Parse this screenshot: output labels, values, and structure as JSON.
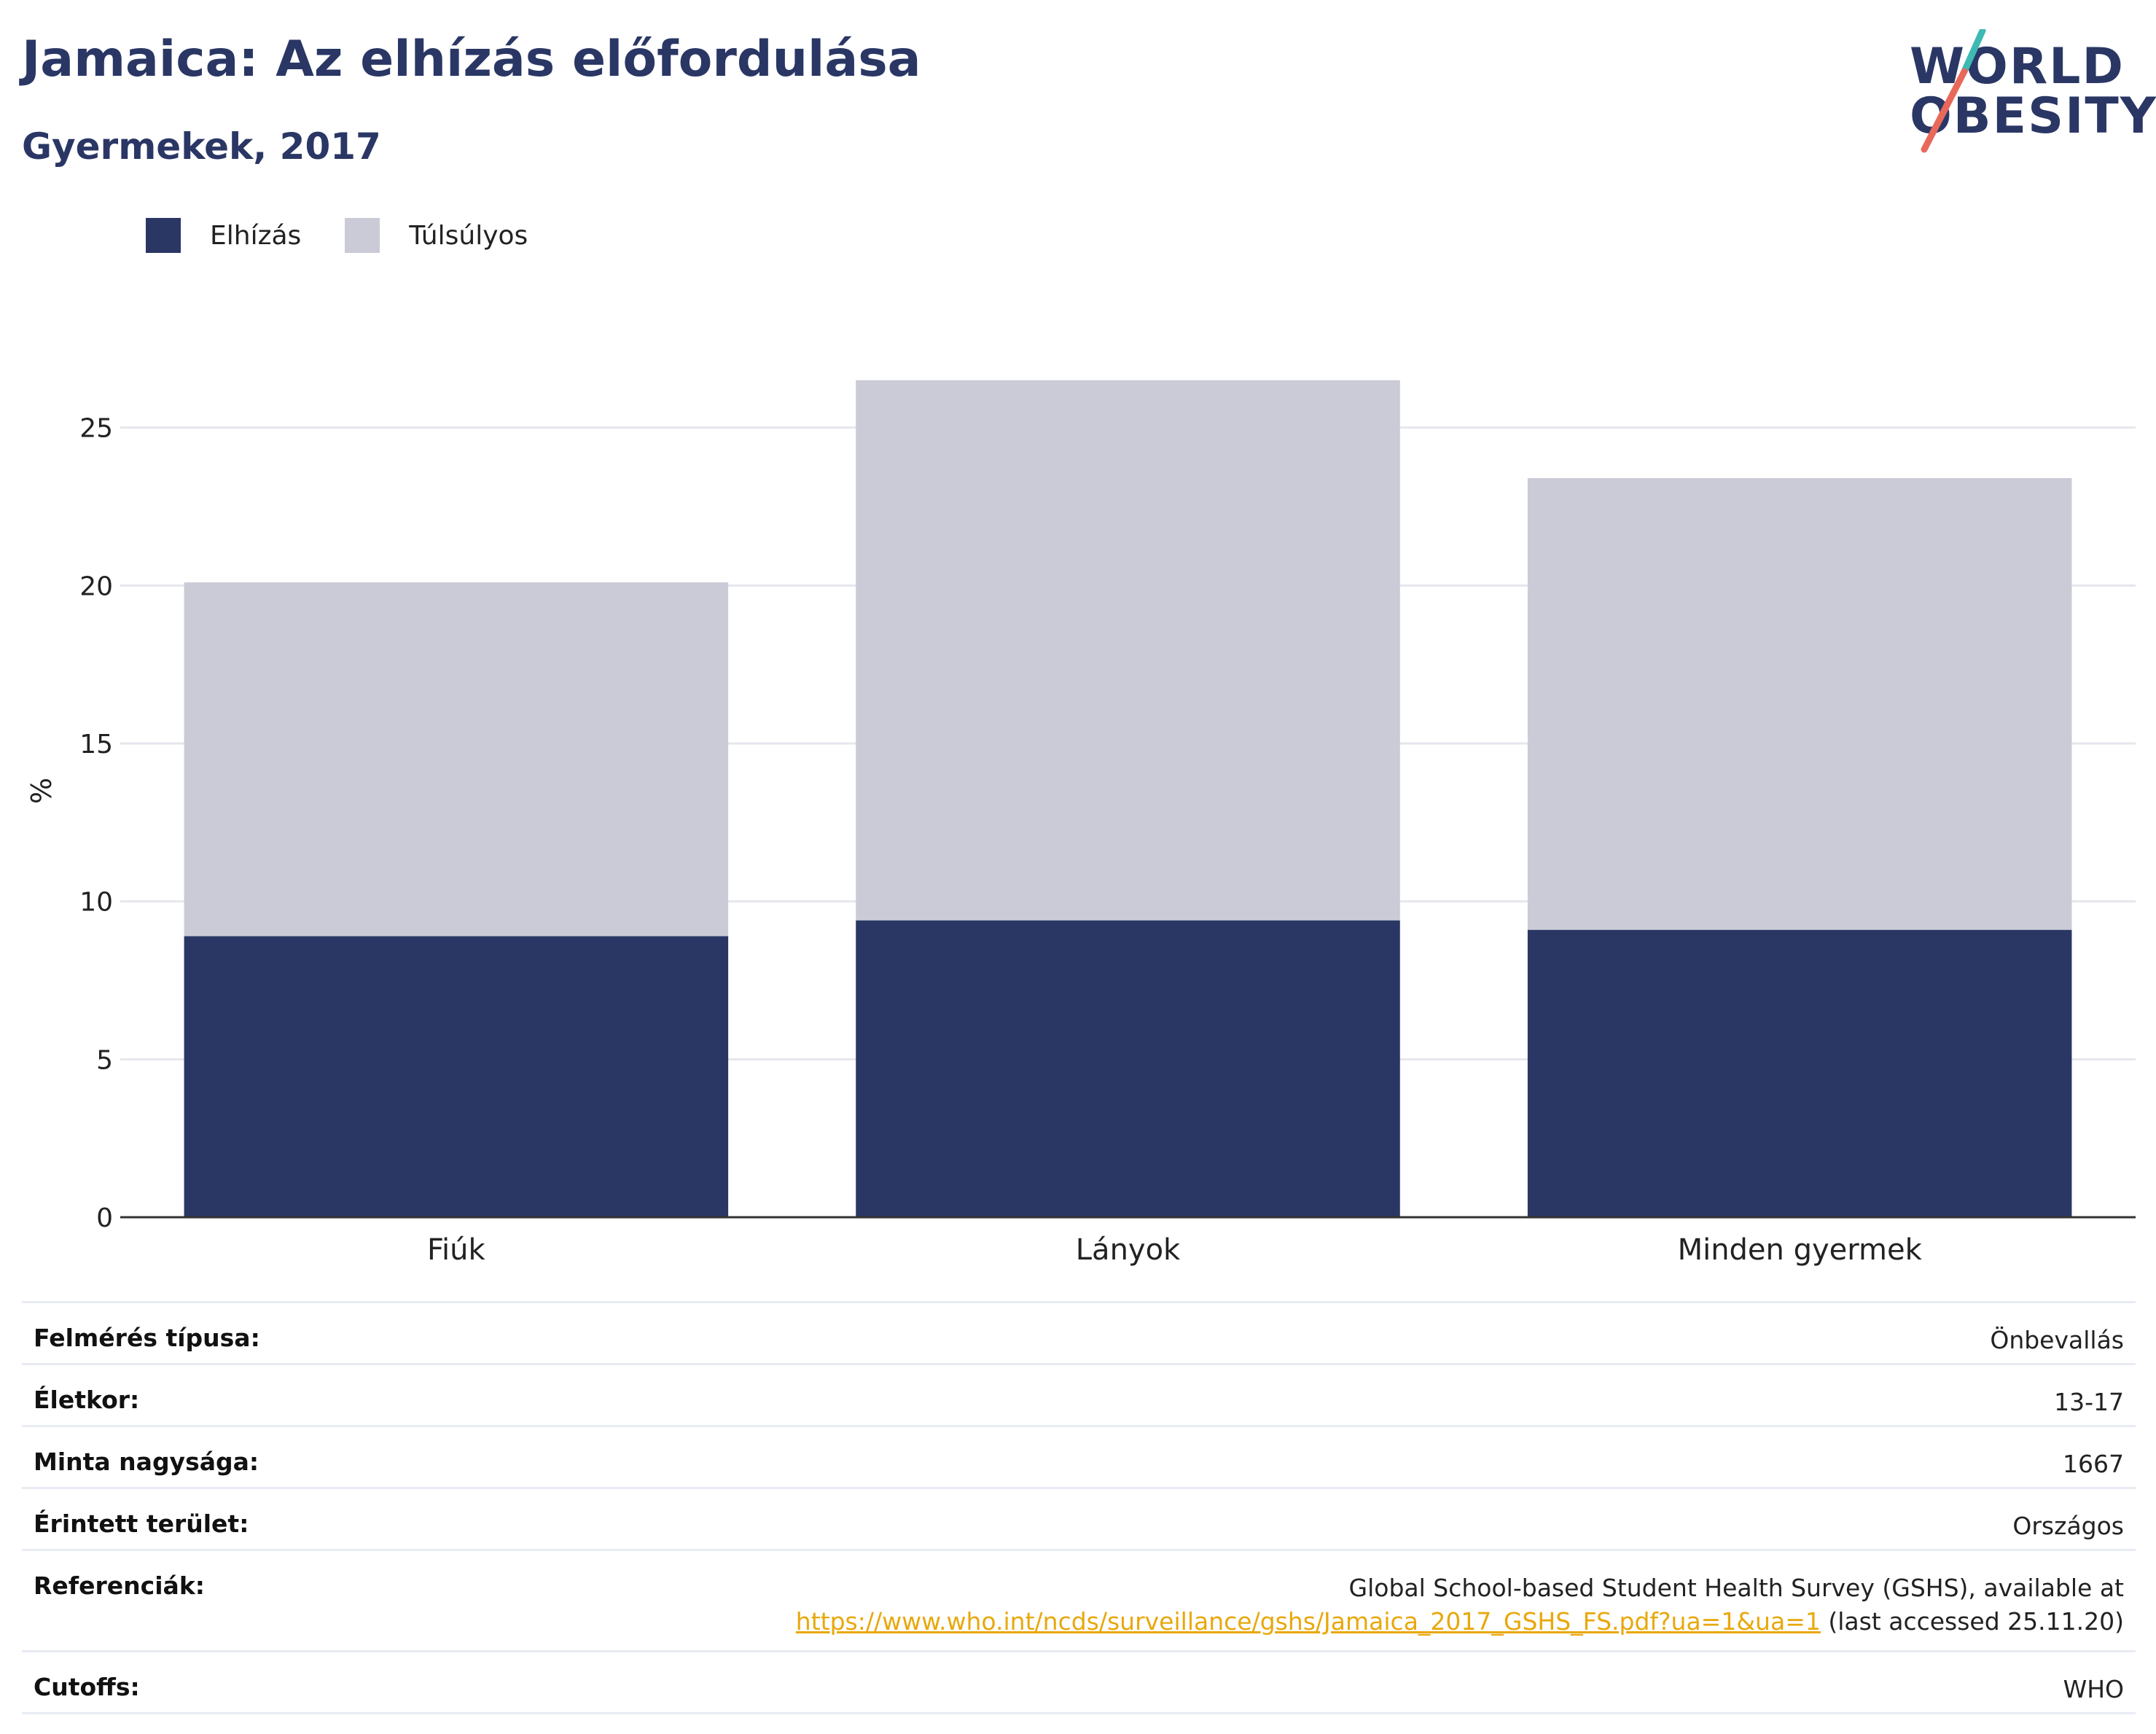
{
  "header": {
    "title": "Jamaica: Az elhízás előfordulása",
    "subtitle": "Gyermekek, 2017"
  },
  "logo": {
    "line1": "WORLD",
    "line2": "OBESITY",
    "colors": {
      "text": "#2a3765",
      "slash_top": "#3dbab3",
      "slash_bottom": "#e8695a"
    }
  },
  "colors": {
    "obesity": "#2a3765",
    "overweight": "#cacbd6",
    "grid": "#e6e6ee",
    "axis": "#333333",
    "link": "#e8a80c"
  },
  "chart_data": {
    "type": "bar",
    "stacked": true,
    "categories": [
      "Fiúk",
      "Lányok",
      "Minden gyermek"
    ],
    "series": [
      {
        "name": "Elhízás",
        "values": [
          8.9,
          9.4,
          9.1
        ]
      },
      {
        "name": "Túlsúlyos",
        "values": [
          11.2,
          17.1,
          14.3
        ]
      }
    ],
    "ylabel": "%",
    "ylim": [
      0,
      27
    ],
    "yticks": [
      0,
      5,
      10,
      15,
      20,
      25
    ],
    "grid": true,
    "legend_position": "top-left"
  },
  "info": {
    "rows": [
      {
        "key": "Felmérés típusa:",
        "value": "Önbevallás"
      },
      {
        "key": "Életkor:",
        "value": "13-17"
      },
      {
        "key": "Minta nagysága:",
        "value": "1667"
      },
      {
        "key": "Érintett terület:",
        "value": "Országos"
      }
    ],
    "references": {
      "key": "Referenciák:",
      "line1": "Global School-based Student Health Survey (GSHS), available at",
      "link": "https://www.who.int/ncds/surveillance/gshs/Jamaica_2017_GSHS_FS.pdf?ua=1&ua=1",
      "suffix": " (last accessed 25.11.20)"
    },
    "cutoffs": {
      "key": "Cutoffs:",
      "value": "WHO"
    }
  }
}
